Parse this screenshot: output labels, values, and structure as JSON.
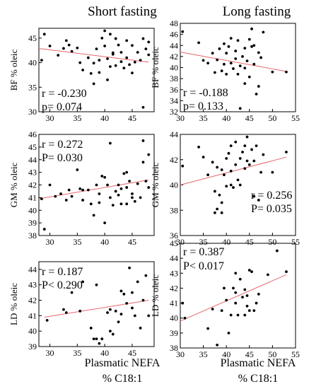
{
  "columns": [
    {
      "title": "Short fasting",
      "xlabel_line1": "Plasmatic NEFA",
      "xlabel_line2": "% C18:1"
    },
    {
      "title": "Long fasting",
      "xlabel_line1": "Plasmatic NEFA",
      "xlabel_line2": "% C18:1"
    }
  ],
  "chart_data": [
    {
      "type": "scatter",
      "title": "Short fasting",
      "ylabel": "BF % oleic",
      "xlim": [
        28,
        49
      ],
      "xticks": [
        30,
        35,
        40,
        45
      ],
      "ylim": [
        30,
        47
      ],
      "yticks": [
        30,
        35,
        40,
        45
      ],
      "stat_lines": [
        "r = -0.230",
        "p= 0.074"
      ],
      "fit": [
        [
          28,
          42.9
        ],
        [
          48,
          40.1
        ]
      ],
      "points": [
        [
          28.5,
          40.5
        ],
        [
          29,
          45.8
        ],
        [
          30,
          43.4
        ],
        [
          31.5,
          41.5
        ],
        [
          32.5,
          42.9
        ],
        [
          33,
          44.5
        ],
        [
          33.5,
          43.6
        ],
        [
          34,
          42.3
        ],
        [
          35,
          43.0
        ],
        [
          35.5,
          40.0
        ],
        [
          36,
          38.5
        ],
        [
          37,
          41.0
        ],
        [
          37.5,
          37.8
        ],
        [
          38,
          39.9
        ],
        [
          38,
          35.7
        ],
        [
          38.5,
          42.8
        ],
        [
          39,
          40.5
        ],
        [
          39,
          38.0
        ],
        [
          39.5,
          45.0
        ],
        [
          40,
          46.5
        ],
        [
          40,
          43.4
        ],
        [
          40.5,
          40.8
        ],
        [
          40.5,
          36.5
        ],
        [
          41,
          39.2
        ],
        [
          41,
          45.8
        ],
        [
          41.5,
          41.7
        ],
        [
          42,
          44.9
        ],
        [
          42,
          39.4
        ],
        [
          42.5,
          43.6
        ],
        [
          43,
          42.1
        ],
        [
          43,
          40.2
        ],
        [
          43.5,
          38.9
        ],
        [
          44,
          44.5
        ],
        [
          44,
          41.0
        ],
        [
          44.5,
          39.6
        ],
        [
          45,
          37.9
        ],
        [
          45,
          43.5
        ],
        [
          45.5,
          40.1
        ],
        [
          46,
          42.1
        ],
        [
          46.5,
          40.5
        ],
        [
          47,
          44.9
        ],
        [
          47,
          30.9
        ],
        [
          47.5,
          42.8
        ],
        [
          48,
          41.6
        ],
        [
          48,
          44.2
        ],
        [
          41.5,
          42.0
        ]
      ]
    },
    {
      "type": "scatter",
      "title": "Long fasting",
      "ylabel": "BF % oleic",
      "xlim": [
        30,
        55
      ],
      "xticks": [
        30,
        35,
        40,
        45,
        50,
        55
      ],
      "ylim": [
        32,
        48
      ],
      "yticks": [
        32,
        34,
        36,
        38,
        40,
        42,
        44,
        46,
        48
      ],
      "stat_lines": [
        "r = -0.188",
        "p= 0.133"
      ],
      "fit": [
        [
          30,
          42.8
        ],
        [
          53,
          39.3
        ]
      ],
      "points": [
        [
          30.5,
          46.5
        ],
        [
          34,
          44.5
        ],
        [
          35,
          41.3
        ],
        [
          36,
          40.8
        ],
        [
          37,
          42.6
        ],
        [
          37.5,
          39.1
        ],
        [
          38,
          41.4
        ],
        [
          38.5,
          43.4
        ],
        [
          39,
          39.4
        ],
        [
          39.5,
          40.6
        ],
        [
          39.5,
          44.3
        ],
        [
          40,
          38.8
        ],
        [
          40,
          42.6
        ],
        [
          40.5,
          43.8
        ],
        [
          41,
          40.8
        ],
        [
          41,
          45.3
        ],
        [
          41.5,
          39.8
        ],
        [
          42,
          41.6
        ],
        [
          42,
          43.0
        ],
        [
          42.5,
          38.8
        ],
        [
          42.5,
          44.9
        ],
        [
          43,
          40.3
        ],
        [
          43,
          32.6
        ],
        [
          43.5,
          42.0
        ],
        [
          44,
          39.9
        ],
        [
          44,
          43.5
        ],
        [
          44.5,
          41.2
        ],
        [
          45,
          45.1
        ],
        [
          45,
          38.3
        ],
        [
          45.5,
          47.0
        ],
        [
          45.5,
          43.8
        ],
        [
          46,
          40.6
        ],
        [
          46,
          44.0
        ],
        [
          46.5,
          35.2
        ],
        [
          47,
          36.6
        ],
        [
          47,
          42.7
        ],
        [
          47.5,
          41.8
        ],
        [
          48,
          46.4
        ],
        [
          50,
          39.2
        ],
        [
          53,
          39.2
        ],
        [
          44,
          37.1
        ]
      ]
    },
    {
      "type": "scatter",
      "ylabel": "GM % oleic",
      "xlim": [
        28,
        49
      ],
      "xticks": [
        30,
        35,
        40,
        45
      ],
      "ylim": [
        38,
        46
      ],
      "yticks": [
        38,
        39,
        40,
        41,
        42,
        43,
        44,
        45,
        46
      ],
      "stat_lines": [
        "r = 0.272",
        "P= 0.030"
      ],
      "fit": [
        [
          28,
          40.9
        ],
        [
          48,
          42.4
        ]
      ],
      "points": [
        [
          28.5,
          40.9
        ],
        [
          29,
          38.5
        ],
        [
          30,
          42.0
        ],
        [
          31,
          41.1
        ],
        [
          32,
          41.3
        ],
        [
          33,
          40.8
        ],
        [
          33.5,
          41.6
        ],
        [
          34,
          41.1
        ],
        [
          35,
          43.2
        ],
        [
          35.5,
          41.7
        ],
        [
          36,
          40.8
        ],
        [
          37,
          41.6
        ],
        [
          37.5,
          40.5
        ],
        [
          38,
          39.6
        ],
        [
          38.5,
          42.0
        ],
        [
          39,
          40.6
        ],
        [
          39,
          41.3
        ],
        [
          39.5,
          42.7
        ],
        [
          40,
          39.0
        ],
        [
          40,
          42.6
        ],
        [
          40.5,
          42.0
        ],
        [
          41,
          41.0
        ],
        [
          41,
          45.3
        ],
        [
          41.5,
          40.4
        ],
        [
          42,
          41.5
        ],
        [
          42.5,
          42.0
        ],
        [
          43,
          41.7
        ],
        [
          43,
          40.5
        ],
        [
          43.5,
          42.9
        ],
        [
          44,
          40.5
        ],
        [
          44,
          43.0
        ],
        [
          44.5,
          42.3
        ],
        [
          45,
          41.3
        ],
        [
          45,
          41.0
        ],
        [
          45.5,
          40.7
        ],
        [
          46,
          42.1
        ],
        [
          46.5,
          41.0
        ],
        [
          47,
          43.8
        ],
        [
          47,
          45.5
        ],
        [
          47.5,
          42.3
        ],
        [
          48,
          41.8
        ],
        [
          48,
          44.4
        ],
        [
          36,
          41.6
        ],
        [
          42.5,
          41.2
        ],
        [
          44,
          41.8
        ]
      ]
    },
    {
      "type": "scatter",
      "ylabel": "GM % oleic",
      "xlim": [
        30,
        55
      ],
      "xticks": [
        30,
        35,
        40,
        45,
        50,
        55
      ],
      "ylim": [
        36,
        44
      ],
      "yticks": [
        36,
        38,
        40,
        42,
        44
      ],
      "stat_lines": [
        "r = 0.256",
        "P= 0.035"
      ],
      "fit": [
        [
          30,
          40.0
        ],
        [
          53,
          42.2
        ]
      ],
      "points": [
        [
          30.5,
          41.5
        ],
        [
          34,
          43.0
        ],
        [
          35,
          42.2
        ],
        [
          36,
          40.8
        ],
        [
          37,
          41.8
        ],
        [
          37.5,
          39.5
        ],
        [
          37.5,
          37.8
        ],
        [
          38,
          38.1
        ],
        [
          38,
          41.4
        ],
        [
          38.5,
          39.2
        ],
        [
          39,
          37.8
        ],
        [
          39,
          41.2
        ],
        [
          39.5,
          40.8
        ],
        [
          40,
          39.9
        ],
        [
          40,
          42.1
        ],
        [
          40.5,
          42.5
        ],
        [
          41,
          40.0
        ],
        [
          41,
          43.1
        ],
        [
          41.5,
          39.8
        ],
        [
          42,
          41.6
        ],
        [
          42,
          43.4
        ],
        [
          42.5,
          40.4
        ],
        [
          43,
          42.1
        ],
        [
          43,
          40.0
        ],
        [
          43.5,
          42.6
        ],
        [
          44,
          41.3
        ],
        [
          44,
          43.1
        ],
        [
          44.5,
          41.9
        ],
        [
          44.5,
          43.8
        ],
        [
          45,
          41.6
        ],
        [
          45.5,
          42.8
        ],
        [
          46,
          39.1
        ],
        [
          46,
          41.9
        ],
        [
          46.5,
          43.1
        ],
        [
          47,
          38.8
        ],
        [
          47.5,
          41.0
        ],
        [
          48,
          42.4
        ],
        [
          50,
          41.0
        ],
        [
          53,
          42.6
        ],
        [
          41,
          41.1
        ],
        [
          39,
          38.6
        ]
      ]
    },
    {
      "type": "scatter",
      "ylabel": "LD % oleic",
      "xlim": [
        28,
        49
      ],
      "xticks": [
        30,
        35,
        40,
        45
      ],
      "ylim": [
        39,
        44.5
      ],
      "yticks": [
        39,
        40,
        41,
        42,
        43,
        44
      ],
      "stat_lines": [
        "r = 0.187",
        "P< 0.290"
      ],
      "fit": [
        [
          29,
          40.9
        ],
        [
          48,
          42.0
        ]
      ],
      "points": [
        [
          29.5,
          40.7
        ],
        [
          32.5,
          41.4
        ],
        [
          33,
          41.2
        ],
        [
          34,
          42.5
        ],
        [
          35.5,
          41.3
        ],
        [
          36,
          43.2
        ],
        [
          37.5,
          40.2
        ],
        [
          38,
          39.5
        ],
        [
          38.5,
          39.5
        ],
        [
          39,
          39.2
        ],
        [
          39.5,
          39.5
        ],
        [
          40.5,
          41.2
        ],
        [
          41,
          40.0
        ],
        [
          41.5,
          39.8
        ],
        [
          42,
          41.3
        ],
        [
          42.5,
          40.6
        ],
        [
          43,
          42.6
        ],
        [
          43,
          41.1
        ],
        [
          43.5,
          42.4
        ],
        [
          44,
          41.8
        ],
        [
          44.5,
          44.1
        ],
        [
          45,
          42.5
        ],
        [
          45.5,
          41.0
        ],
        [
          46,
          43.2
        ],
        [
          46.5,
          40.2
        ],
        [
          47,
          42.0
        ],
        [
          47.5,
          43.6
        ],
        [
          48,
          41.0
        ],
        [
          41,
          41.4
        ],
        [
          45,
          41.5
        ],
        [
          38.5,
          43.0
        ]
      ]
    },
    {
      "type": "scatter",
      "ylabel": "LD % oleic",
      "xlim": [
        30,
        55
      ],
      "xticks": [
        30,
        35,
        40,
        45,
        50,
        55
      ],
      "ylim": [
        38,
        45
      ],
      "yticks": [
        38,
        39,
        40,
        41,
        42,
        43,
        44,
        45
      ],
      "stat_lines": [
        "r = 0.387",
        "P< 0.017"
      ],
      "fit": [
        [
          30,
          39.8
        ],
        [
          53,
          42.9
        ]
      ],
      "points": [
        [
          30.5,
          41.0
        ],
        [
          31,
          40.0
        ],
        [
          36,
          39.3
        ],
        [
          37,
          40.6
        ],
        [
          38,
          38.2
        ],
        [
          39,
          40.5
        ],
        [
          39.5,
          42.0
        ],
        [
          40,
          41.2
        ],
        [
          40.5,
          39.0
        ],
        [
          41,
          40.2
        ],
        [
          41.5,
          42.0
        ],
        [
          42,
          41.0
        ],
        [
          42,
          41.7
        ],
        [
          42.5,
          40.2
        ],
        [
          43,
          42.6
        ],
        [
          43.5,
          41.4
        ],
        [
          44,
          41.9
        ],
        [
          44,
          40.2
        ],
        [
          44.5,
          41.5
        ],
        [
          45,
          43.2
        ],
        [
          45,
          40.5
        ],
        [
          45.5,
          43.1
        ],
        [
          46,
          40.5
        ],
        [
          46.5,
          41.0
        ],
        [
          47,
          41.6
        ],
        [
          49,
          42.9
        ],
        [
          51,
          44.5
        ],
        [
          53,
          43.1
        ],
        [
          44.5,
          40.8
        ],
        [
          42,
          43.0
        ]
      ]
    }
  ]
}
